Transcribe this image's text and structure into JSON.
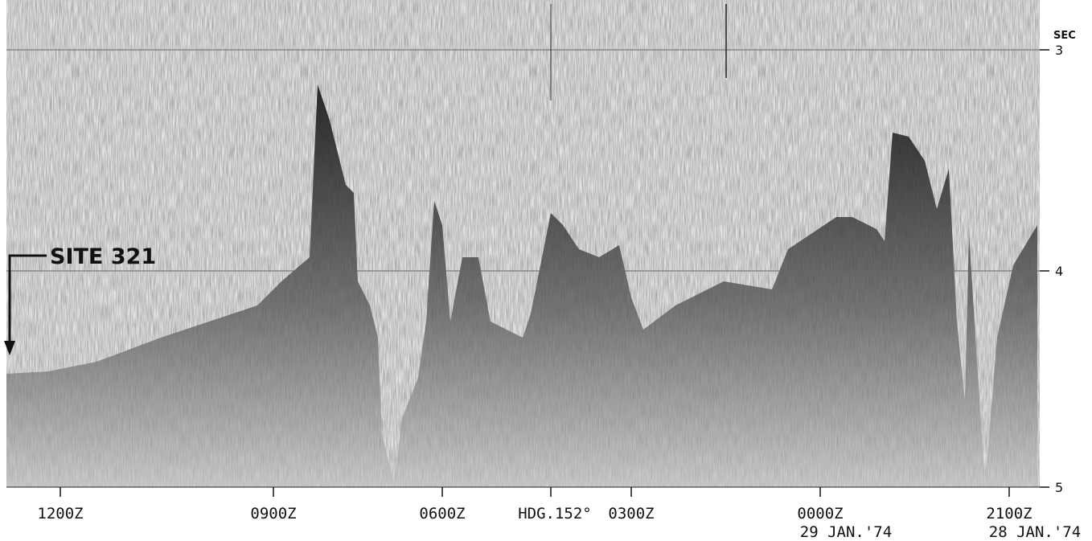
{
  "labels": {
    "site": "SITE 321",
    "unit": "SEC",
    "depth": [
      "3",
      "4",
      "5"
    ],
    "times": [
      "1200Z",
      "0900Z",
      "0600Z",
      "HDG.152°",
      "0300Z",
      "0000Z",
      "2100Z"
    ],
    "dates": [
      "29 JAN.'74",
      "28 JAN.'74"
    ]
  }
}
